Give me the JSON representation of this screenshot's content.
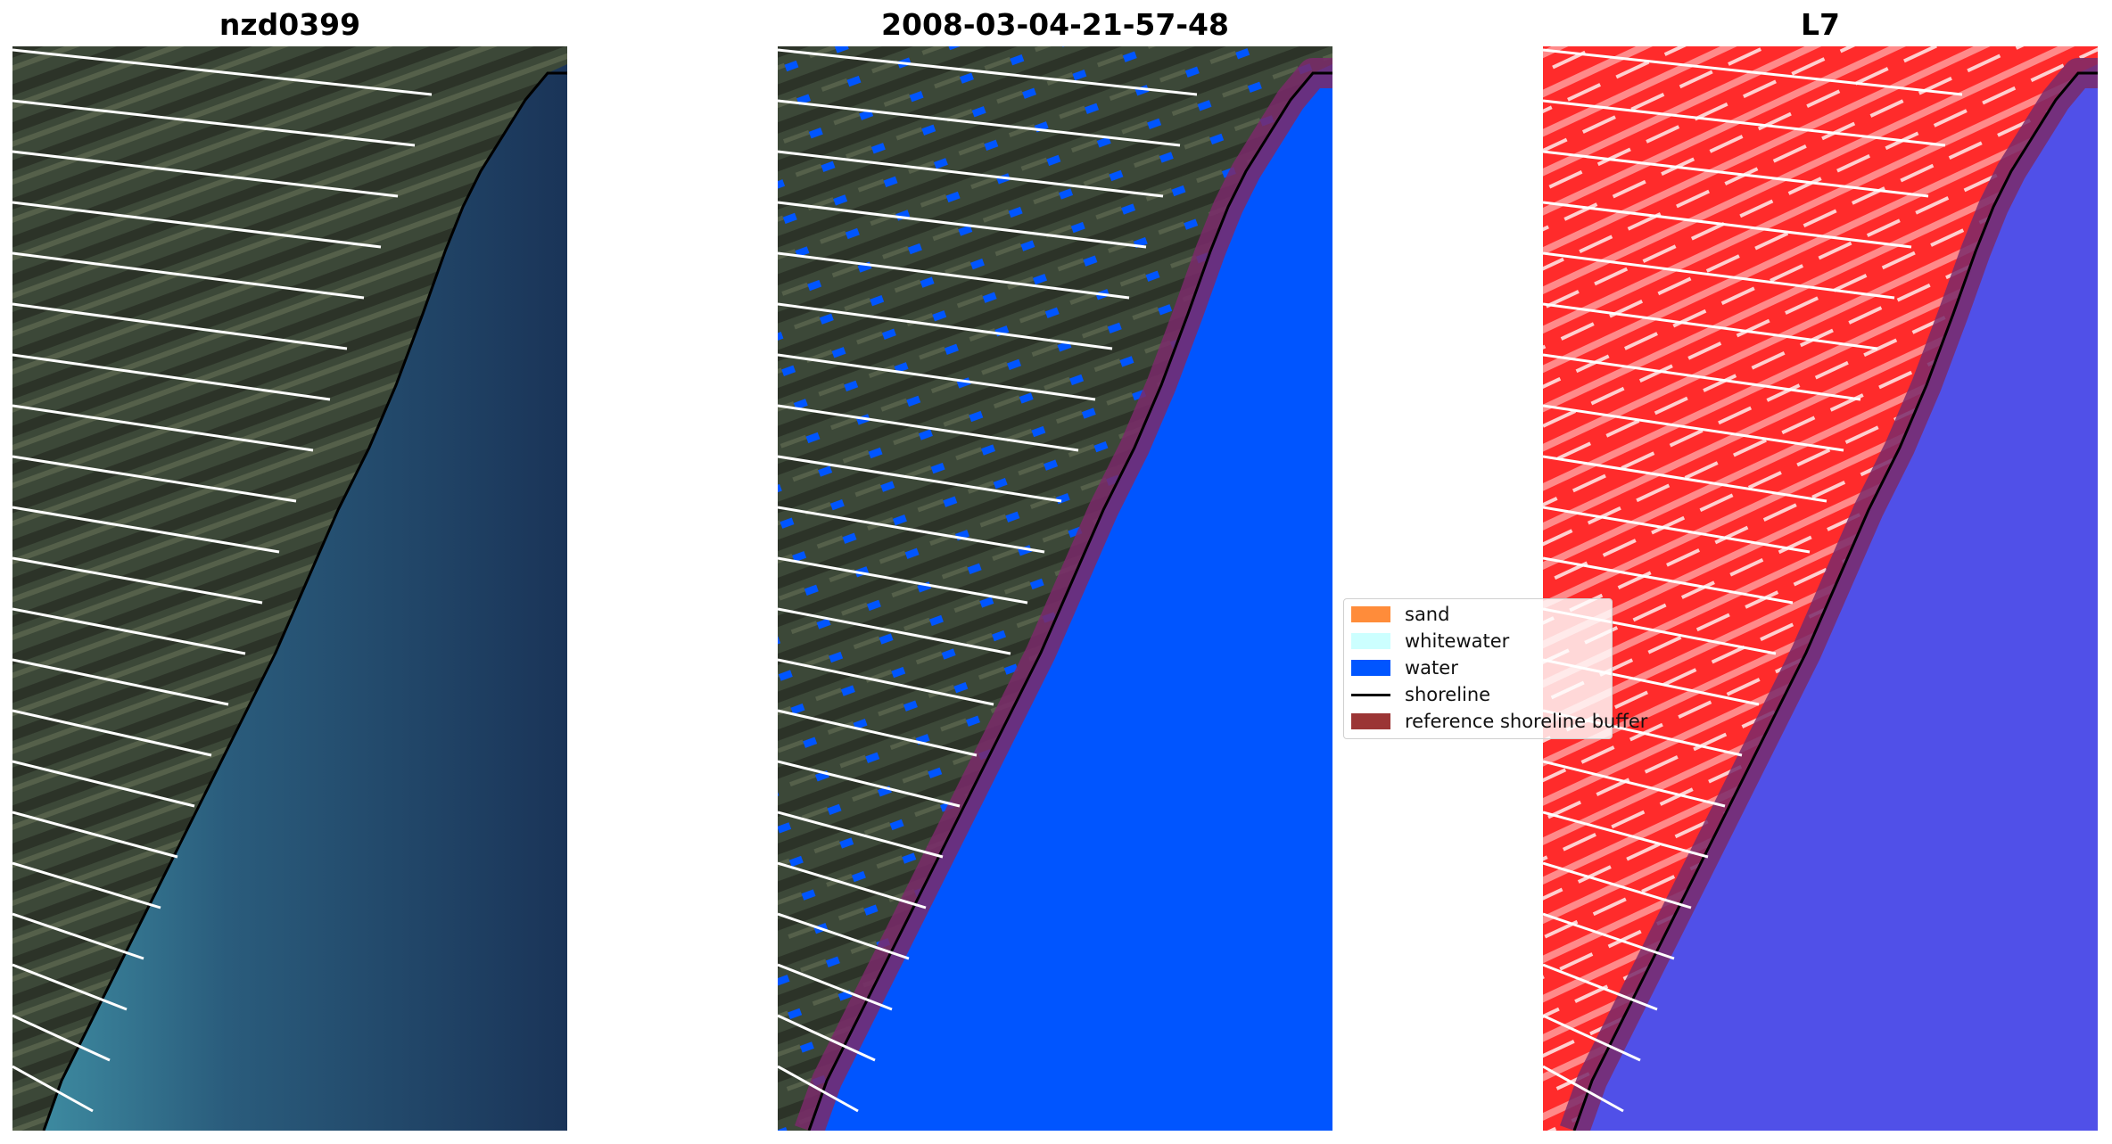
{
  "panels": [
    {
      "title": "nzd0399"
    },
    {
      "title": "2008-03-04-21-57-48"
    },
    {
      "title": "L7"
    }
  ],
  "legend": {
    "items": [
      {
        "label": "sand",
        "color": "#ff8c3a"
      },
      {
        "label": "whitewater",
        "color": "#ccffff"
      },
      {
        "label": "water",
        "color": "#0055ff"
      },
      {
        "label": "shoreline",
        "color": "#000000"
      },
      {
        "label": "reference shoreline buffer",
        "color": "#9b3535"
      }
    ]
  },
  "colors": {
    "land_rgb": "#3f4a3c",
    "sea_rgb": "#1c3a5e",
    "sea_turbid": "#3d8aa0",
    "water_class": "#0055ff",
    "land_false": "#ff2b2b",
    "sea_false": "#5050e8",
    "buffer": "#7a2a6a",
    "transect": "#ffffff"
  }
}
